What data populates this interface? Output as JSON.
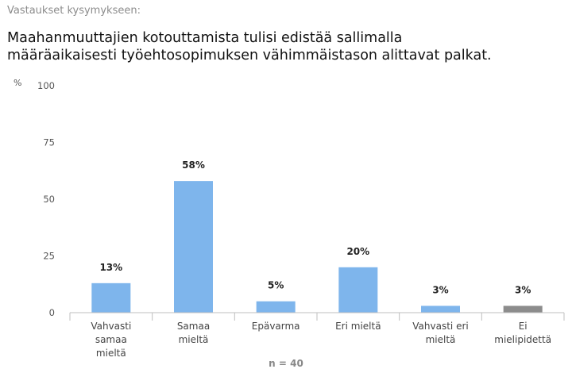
{
  "header": {
    "subtitle": "Vastaukset kysymykseen:",
    "question_line1": "Maahanmuuttajien kotouttamista tulisi edistää sallimalla",
    "question_line2": "määräaikaisesti työehtosopimuksen vähimmäistason alittavat palkat."
  },
  "chart_data": {
    "type": "bar",
    "ylabel": "%",
    "ylim": [
      0,
      100
    ],
    "yticks": [
      0,
      25,
      50,
      75,
      100
    ],
    "grid": false,
    "categories": [
      [
        "Vahvasti",
        "samaa",
        "mieltä"
      ],
      [
        "Samaa",
        "mieltä"
      ],
      [
        "Epävarma"
      ],
      [
        "Eri mieltä"
      ],
      [
        "Vahvasti eri",
        "mieltä"
      ],
      [
        "Ei",
        "mielipidettä"
      ]
    ],
    "values": [
      13,
      58,
      5,
      20,
      3,
      3
    ],
    "value_labels": [
      "13%",
      "58%",
      "5%",
      "20%",
      "3%",
      "3%"
    ],
    "colors": [
      "#7eb5ec",
      "#7eb5ec",
      "#7eb5ec",
      "#7eb5ec",
      "#7eb5ec",
      "#8c8c8c"
    ],
    "footnote": "n = 40"
  }
}
